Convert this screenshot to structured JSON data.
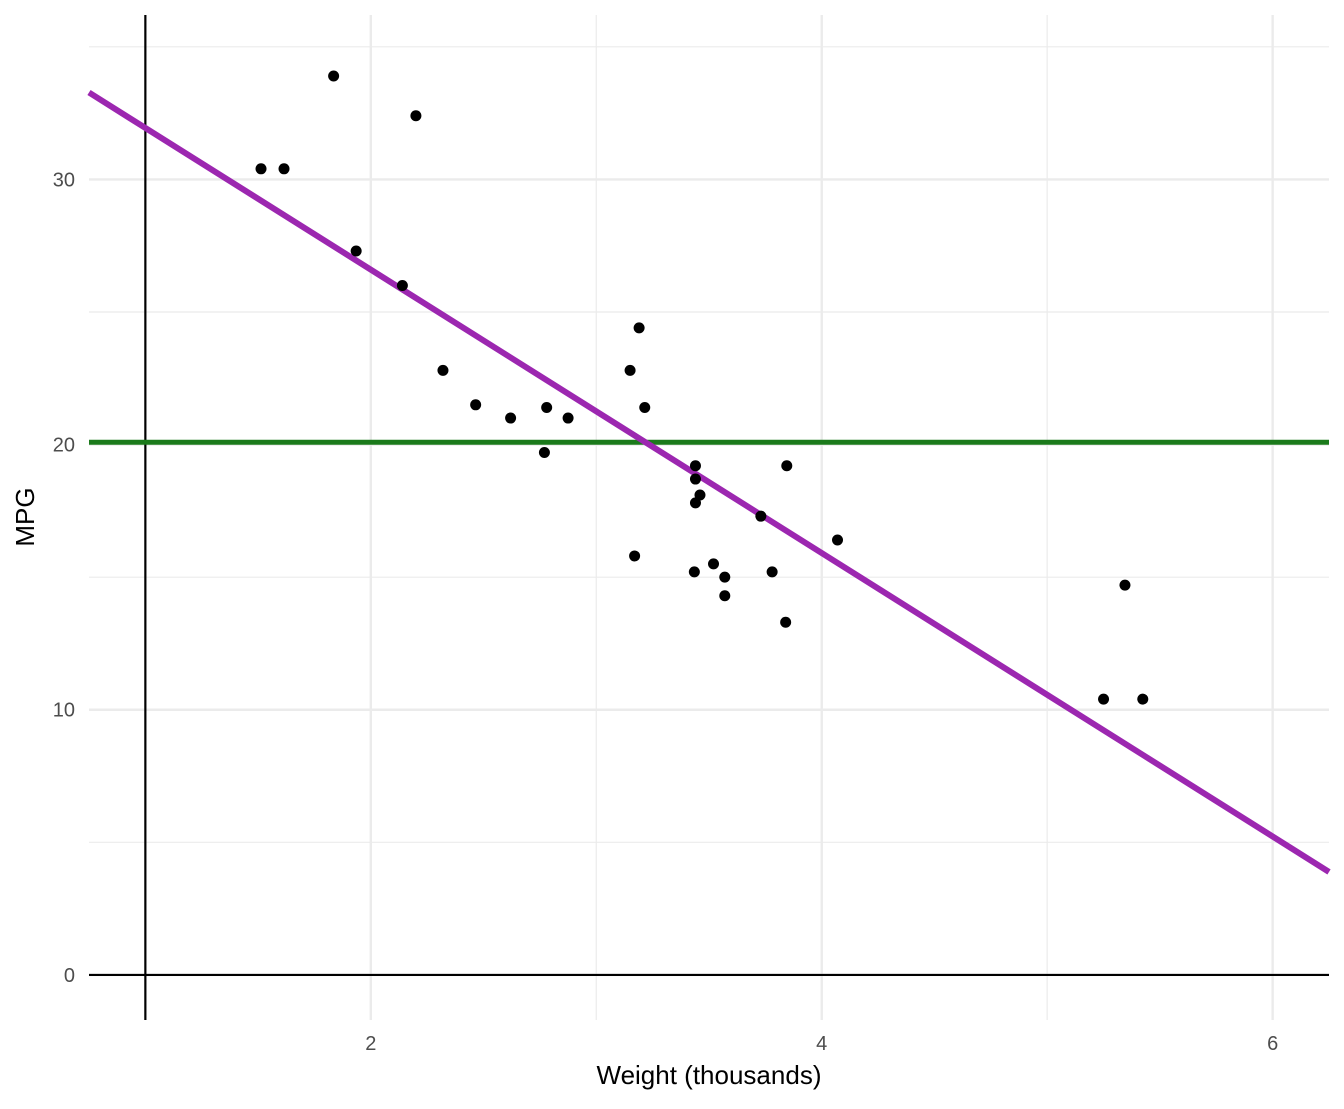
{
  "chart_data": {
    "type": "scatter",
    "title": "",
    "xlabel": "Weight (thousands)",
    "ylabel": "MPG",
    "xlim": [
      0.75,
      6.25
    ],
    "ylim": [
      -1.7,
      36.2
    ],
    "x_ticks": [
      2,
      4,
      6
    ],
    "x_minor_ticks": [
      1,
      3,
      5
    ],
    "y_ticks": [
      0,
      10,
      20,
      30
    ],
    "y_minor_ticks": [
      5,
      15,
      25,
      35
    ],
    "grid": true,
    "points": [
      {
        "x": 2.62,
        "y": 21.0
      },
      {
        "x": 2.875,
        "y": 21.0
      },
      {
        "x": 2.32,
        "y": 22.8
      },
      {
        "x": 3.215,
        "y": 21.4
      },
      {
        "x": 3.44,
        "y": 18.7
      },
      {
        "x": 3.46,
        "y": 18.1
      },
      {
        "x": 3.57,
        "y": 14.3
      },
      {
        "x": 3.19,
        "y": 24.4
      },
      {
        "x": 3.15,
        "y": 22.8
      },
      {
        "x": 3.44,
        "y": 19.2
      },
      {
        "x": 3.44,
        "y": 17.8
      },
      {
        "x": 4.07,
        "y": 16.4
      },
      {
        "x": 3.73,
        "y": 17.3
      },
      {
        "x": 3.78,
        "y": 15.2
      },
      {
        "x": 5.25,
        "y": 10.4
      },
      {
        "x": 5.424,
        "y": 10.4
      },
      {
        "x": 5.345,
        "y": 14.7
      },
      {
        "x": 2.2,
        "y": 32.4
      },
      {
        "x": 1.615,
        "y": 30.4
      },
      {
        "x": 1.835,
        "y": 33.9
      },
      {
        "x": 2.465,
        "y": 21.5
      },
      {
        "x": 3.52,
        "y": 15.5
      },
      {
        "x": 3.435,
        "y": 15.2
      },
      {
        "x": 3.84,
        "y": 13.3
      },
      {
        "x": 3.845,
        "y": 19.2
      },
      {
        "x": 1.935,
        "y": 27.3
      },
      {
        "x": 2.14,
        "y": 26.0
      },
      {
        "x": 1.513,
        "y": 30.4
      },
      {
        "x": 3.17,
        "y": 15.8
      },
      {
        "x": 2.77,
        "y": 19.7
      },
      {
        "x": 3.57,
        "y": 15.0
      },
      {
        "x": 2.78,
        "y": 21.4
      }
    ],
    "regression_line": {
      "intercept": 37.285,
      "slope": -5.344,
      "color": "#9C27B0"
    },
    "mean_line": {
      "y": 20.09,
      "color": "#1B7A1B"
    },
    "vline": {
      "x": 1.0,
      "color": "#000000"
    },
    "hline": {
      "y": 0,
      "color": "#000000"
    },
    "point_color": "#000000",
    "grid_color": "#EBEBEB"
  }
}
